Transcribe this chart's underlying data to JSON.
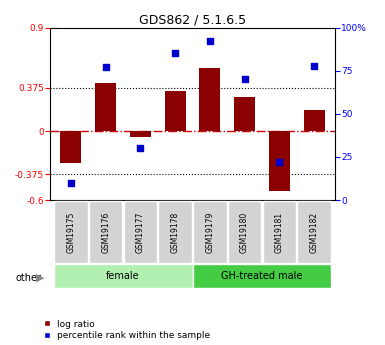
{
  "title": "GDS862 / 5.1.6.5",
  "samples": [
    "GSM19175",
    "GSM19176",
    "GSM19177",
    "GSM19178",
    "GSM19179",
    "GSM19180",
    "GSM19181",
    "GSM19182"
  ],
  "log_ratio": [
    -0.28,
    0.42,
    -0.05,
    0.35,
    0.55,
    0.3,
    -0.52,
    0.18
  ],
  "percentile": [
    10,
    77,
    30,
    85,
    92,
    70,
    22,
    78
  ],
  "groups": [
    {
      "label": "female",
      "start": 0,
      "end": 4,
      "color": "#b2f0b2"
    },
    {
      "label": "GH-treated male",
      "start": 4,
      "end": 8,
      "color": "#44cc44"
    }
  ],
  "ylim_left": [
    -0.6,
    0.9
  ],
  "ylim_right": [
    0,
    100
  ],
  "yticks_left": [
    -0.6,
    -0.375,
    0,
    0.375,
    0.9
  ],
  "yticks_right": [
    0,
    25,
    50,
    75,
    100
  ],
  "hlines": [
    0.375,
    -0.375
  ],
  "bar_color": "#8B0000",
  "dot_color": "#0000CD",
  "zero_line_color": "#cc0000",
  "other_label": "other",
  "legend_logratio": "log ratio",
  "legend_percentile": "percentile rank within the sample"
}
